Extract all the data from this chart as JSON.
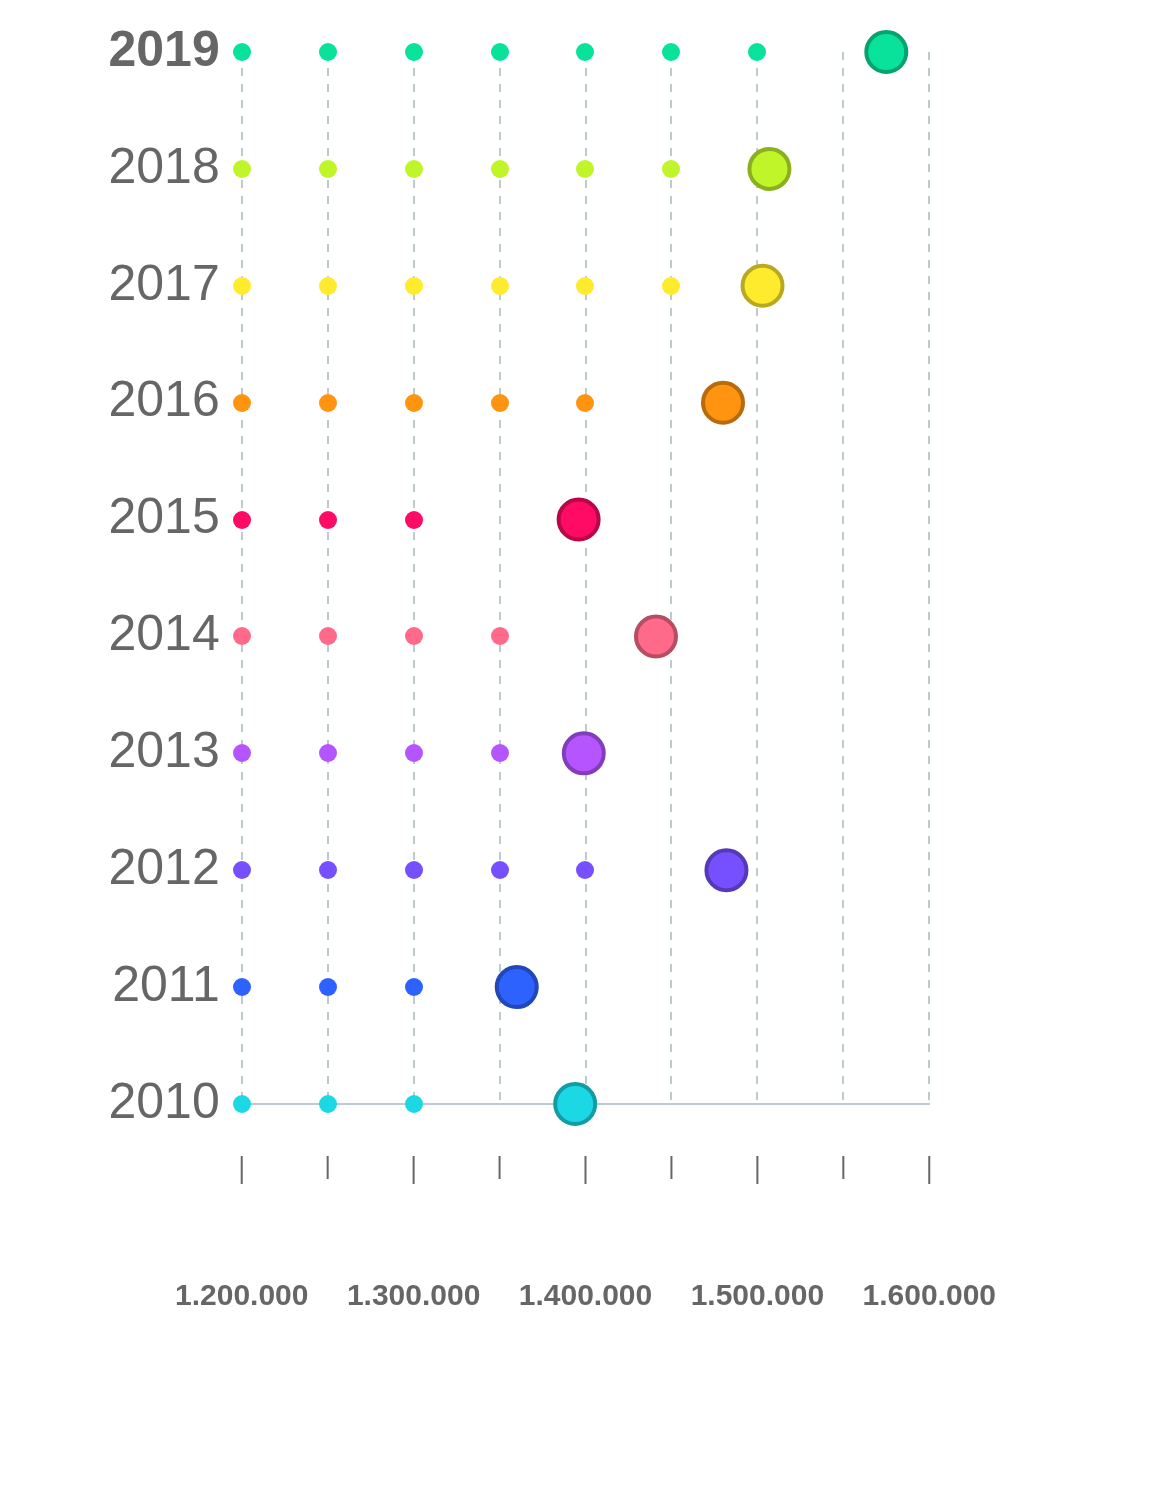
{
  "chart_data": {
    "type": "lollipop",
    "orientation": "horizontal",
    "categories": [
      "2019",
      "2018",
      "2017",
      "2016",
      "2015",
      "2014",
      "2013",
      "2012",
      "2011",
      "2010"
    ],
    "values": [
      1575000,
      1507000,
      1503000,
      1480000,
      1396000,
      1441000,
      1399000,
      1482000,
      1360000,
      1394000
    ],
    "colors": [
      "#08e29a",
      "#c0f52a",
      "#ffeb2e",
      "#ff9410",
      "#ff0a64",
      "#ff6a8a",
      "#b455ff",
      "#7650ff",
      "#2e62ff",
      "#1cd8e4"
    ],
    "xlim": [
      1200000,
      1600000
    ],
    "xticks": [
      {
        "value": 1200000,
        "label": "1.200.000"
      },
      {
        "value": 1250000,
        "label": null
      },
      {
        "value": 1300000,
        "label": "1.300.000"
      },
      {
        "value": 1350000,
        "label": null
      },
      {
        "value": 1400000,
        "label": "1.400.000"
      },
      {
        "value": 1450000,
        "label": null
      },
      {
        "value": 1500000,
        "label": "1.500.000"
      },
      {
        "value": 1550000,
        "label": null
      },
      {
        "value": 1600000,
        "label": "1.600.000"
      }
    ],
    "grid": "x",
    "legend": false,
    "marker": "circle"
  }
}
